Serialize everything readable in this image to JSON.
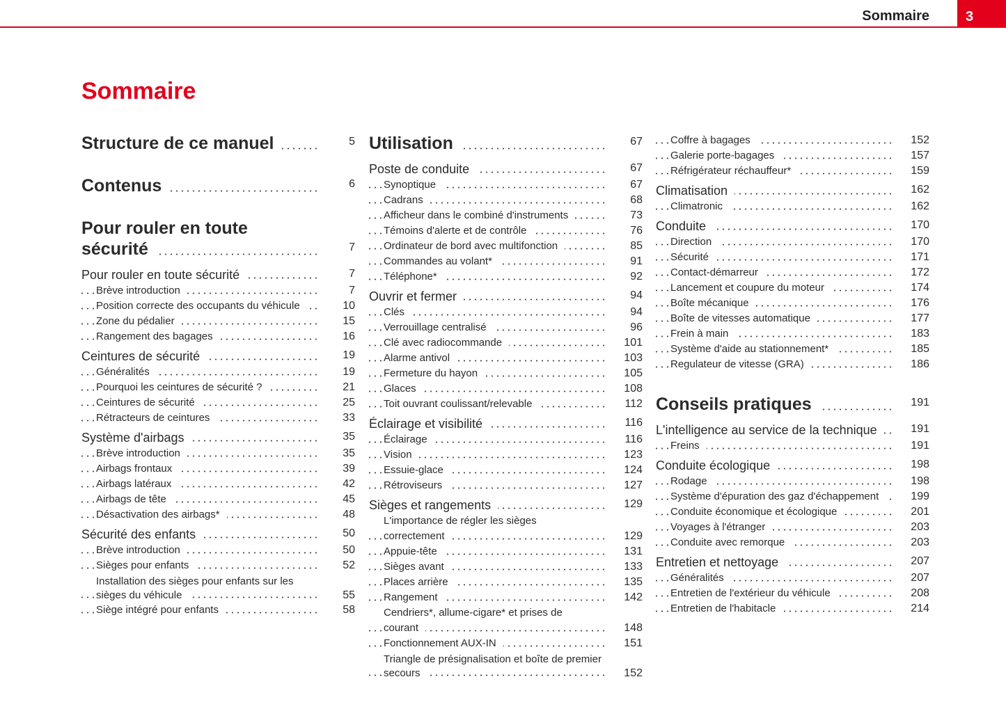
{
  "header": {
    "running_title": "Sommaire",
    "page_number": "3",
    "accent_color": "#e3001b"
  },
  "title": "Sommaire",
  "columns": [
    [
      {
        "type": "h",
        "title": "Structure de ce manuel",
        "page": "5"
      },
      {
        "type": "h",
        "title": "Contenus",
        "page": "6"
      },
      {
        "type": "h",
        "title": "Pour rouler en toute sécurité",
        "page": "7"
      },
      {
        "type": "l1",
        "title": "Pour rouler en toute sécurité",
        "page": "7"
      },
      {
        "type": "l2",
        "title": "Brève introduction",
        "page": "7"
      },
      {
        "type": "l2",
        "title": "Position correcte des occupants du véhicule",
        "page": "10"
      },
      {
        "type": "l2",
        "title": "Zone du pédalier",
        "page": "15"
      },
      {
        "type": "l2",
        "title": "Rangement des bagages",
        "page": "16"
      },
      {
        "type": "l1",
        "title": "Ceintures de sécurité",
        "page": "19"
      },
      {
        "type": "l2",
        "title": "Généralités",
        "page": "19"
      },
      {
        "type": "l2",
        "title": "Pourquoi les ceintures de sécurité ?",
        "page": "21"
      },
      {
        "type": "l2",
        "title": "Ceintures de sécurité",
        "page": "25"
      },
      {
        "type": "l2",
        "title": "Rétracteurs de ceintures",
        "page": "33"
      },
      {
        "type": "l1",
        "title": "Système d'airbags",
        "page": "35"
      },
      {
        "type": "l2",
        "title": "Brève introduction",
        "page": "35"
      },
      {
        "type": "l2",
        "title": "Airbags frontaux",
        "page": "39"
      },
      {
        "type": "l2",
        "title": "Airbags latéraux",
        "page": "42"
      },
      {
        "type": "l2",
        "title": "Airbags de tête",
        "page": "45"
      },
      {
        "type": "l2",
        "title": "Désactivation des airbags*",
        "page": "48"
      },
      {
        "type": "l1",
        "title": "Sécurité des enfants",
        "page": "50"
      },
      {
        "type": "l2",
        "title": "Brève introduction",
        "page": "50"
      },
      {
        "type": "l2",
        "title": "Sièges pour enfants",
        "page": "52"
      },
      {
        "type": "l2",
        "title": "Installation des sièges pour enfants sur les sièges du véhicule",
        "page": "55",
        "wrap": true
      },
      {
        "type": "l2",
        "title": "Siège intégré pour enfants",
        "page": "58"
      }
    ],
    [
      {
        "type": "h",
        "title": "Utilisation",
        "page": "67"
      },
      {
        "type": "l1",
        "title": "Poste de conduite",
        "page": "67"
      },
      {
        "type": "l2",
        "title": "Synoptique",
        "page": "67"
      },
      {
        "type": "l2",
        "title": "Cadrans",
        "page": "68"
      },
      {
        "type": "l2",
        "title": "Afficheur dans le combiné d'instruments",
        "page": "73"
      },
      {
        "type": "l2",
        "title": "Témoins d'alerte et de contrôle",
        "page": "76"
      },
      {
        "type": "l2",
        "title": "Ordinateur de bord avec multifonction",
        "page": "85"
      },
      {
        "type": "l2",
        "title": "Commandes au volant*",
        "page": "91"
      },
      {
        "type": "l2",
        "title": "Téléphone*",
        "page": "92"
      },
      {
        "type": "l1",
        "title": "Ouvrir et fermer",
        "page": "94"
      },
      {
        "type": "l2",
        "title": "Clés",
        "page": "94"
      },
      {
        "type": "l2",
        "title": "Verrouillage centralisé",
        "page": "96"
      },
      {
        "type": "l2",
        "title": "Clé avec radiocommande",
        "page": "101"
      },
      {
        "type": "l2",
        "title": "Alarme antivol",
        "page": "103"
      },
      {
        "type": "l2",
        "title": "Fermeture du hayon",
        "page": "105"
      },
      {
        "type": "l2",
        "title": "Glaces",
        "page": "108"
      },
      {
        "type": "l2",
        "title": "Toit ouvrant coulissant/relevable",
        "page": "112"
      },
      {
        "type": "l1",
        "title": "Éclairage et visibilité",
        "page": "116"
      },
      {
        "type": "l2",
        "title": "Éclairage",
        "page": "116"
      },
      {
        "type": "l2",
        "title": "Vision",
        "page": "123"
      },
      {
        "type": "l2",
        "title": "Essuie-glace",
        "page": "124"
      },
      {
        "type": "l2",
        "title": "Rétroviseurs",
        "page": "127"
      },
      {
        "type": "l1",
        "title": "Sièges et rangements",
        "page": "129"
      },
      {
        "type": "l2",
        "title": "L'importance de régler les sièges correctement",
        "page": "129"
      },
      {
        "type": "l2",
        "title": "Appuie-tête",
        "page": "131"
      },
      {
        "type": "l2",
        "title": "Sièges avant",
        "page": "133"
      },
      {
        "type": "l2",
        "title": "Places arrière",
        "page": "135"
      },
      {
        "type": "l2",
        "title": "Rangement",
        "page": "142"
      },
      {
        "type": "l2",
        "title": "Cendriers*, allume-cigare* et prises de courant",
        "page": "148"
      },
      {
        "type": "l2",
        "title": "Fonctionnement AUX-IN",
        "page": "151"
      },
      {
        "type": "l2",
        "title": "Triangle de présignalisation et boîte de premier secours",
        "page": "152",
        "wrap": true
      }
    ],
    [
      {
        "type": "l2",
        "title": "Coffre à bagages",
        "page": "152"
      },
      {
        "type": "l2",
        "title": "Galerie porte-bagages",
        "page": "157"
      },
      {
        "type": "l2",
        "title": "Réfrigérateur réchauffeur*",
        "page": "159"
      },
      {
        "type": "l1",
        "title": "Climatisation",
        "page": "162"
      },
      {
        "type": "l2",
        "title": "Climatronic",
        "page": "162"
      },
      {
        "type": "l1",
        "title": "Conduite",
        "page": "170"
      },
      {
        "type": "l2",
        "title": "Direction",
        "page": "170"
      },
      {
        "type": "l2",
        "title": "Sécurité",
        "page": "171"
      },
      {
        "type": "l2",
        "title": "Contact-démarreur",
        "page": "172"
      },
      {
        "type": "l2",
        "title": "Lancement et coupure du moteur",
        "page": "174"
      },
      {
        "type": "l2",
        "title": "Boîte mécanique",
        "page": "176"
      },
      {
        "type": "l2",
        "title": "Boîte de vitesses automatique",
        "page": "177"
      },
      {
        "type": "l2",
        "title": "Frein à main",
        "page": "183"
      },
      {
        "type": "l2",
        "title": "Système d'aide au stationnement*",
        "page": "185"
      },
      {
        "type": "l2",
        "title": "Regulateur de vitesse (GRA)",
        "page": "186"
      },
      {
        "type": "h",
        "title": "Conseils pratiques",
        "page": "191"
      },
      {
        "type": "l1",
        "title": "L'intelligence au service de la technique",
        "page": "191"
      },
      {
        "type": "l2",
        "title": "Freins",
        "page": "191"
      },
      {
        "type": "l1",
        "title": "Conduite écologique",
        "page": "198"
      },
      {
        "type": "l2",
        "title": "Rodage",
        "page": "198"
      },
      {
        "type": "l2",
        "title": "Système d'épuration des gaz d'échappement",
        "page": "199"
      },
      {
        "type": "l2",
        "title": "Conduite économique et écologique",
        "page": "201"
      },
      {
        "type": "l2",
        "title": "Voyages à l'étranger",
        "page": "203"
      },
      {
        "type": "l2",
        "title": "Conduite avec remorque",
        "page": "203"
      },
      {
        "type": "l1",
        "title": "Entretien et nettoyage",
        "page": "207"
      },
      {
        "type": "l2",
        "title": "Généralités",
        "page": "207"
      },
      {
        "type": "l2",
        "title": "Entretien de l'extérieur du véhicule",
        "page": "208"
      },
      {
        "type": "l2",
        "title": "Entretien de l'habitacle",
        "page": "214"
      }
    ]
  ]
}
